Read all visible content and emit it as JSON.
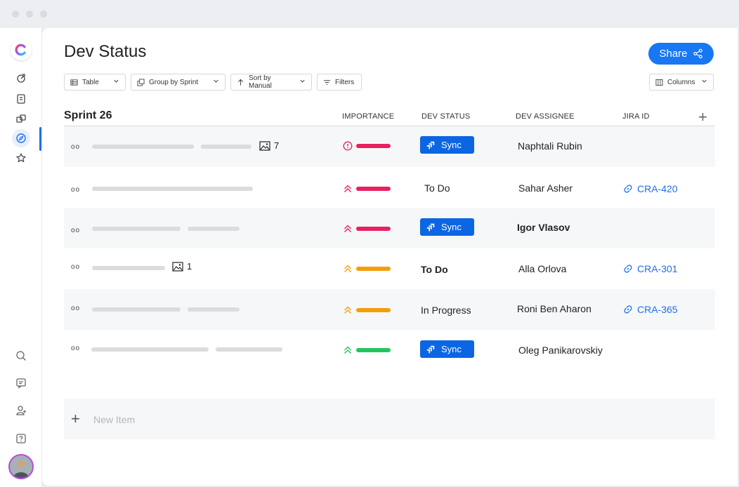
{
  "window": {
    "title_bar_dots": 3
  },
  "sidebar": {
    "logo": "clickup-logo",
    "items": [
      {
        "icon": "rocket-icon"
      },
      {
        "icon": "doc-icon"
      },
      {
        "icon": "layers-icon"
      },
      {
        "icon": "compass-icon",
        "active": true
      },
      {
        "icon": "star-icon"
      }
    ],
    "bottom": [
      {
        "icon": "search-icon"
      },
      {
        "icon": "chat-icon"
      },
      {
        "icon": "user-add-icon"
      },
      {
        "icon": "help-icon"
      },
      {
        "icon": "avatar"
      }
    ]
  },
  "header": {
    "title": "Dev Status",
    "share_label": "Share"
  },
  "toolbar": {
    "view_label": "Table",
    "group_label": "Group by Sprint",
    "sort_label": "Sort by Manual",
    "filters_label": "Filters",
    "columns_label": "Columns"
  },
  "table": {
    "group_name": "Sprint 26",
    "columns": {
      "importance": "IMPORTANCE",
      "dev_status": "DEV STATUS",
      "dev_assignee": "DEV ASSIGNEE",
      "jira_id": "JIRA ID"
    },
    "rows": [
      {
        "importance": "critical",
        "importance_color": "#e8205f",
        "status": "Sync",
        "assignee": "Naphtali Rubin",
        "jira": "",
        "images": "7"
      },
      {
        "importance": "high",
        "importance_color": "#e8205f",
        "status": "To Do",
        "assignee": "Sahar Asher",
        "jira": "CRA-420",
        "images": ""
      },
      {
        "importance": "high",
        "importance_color": "#e8205f",
        "status": "Sync",
        "assignee": "Igor Vlasov",
        "jira": "",
        "images": ""
      },
      {
        "importance": "medium",
        "importance_color": "#f59e0b",
        "status": "To Do",
        "assignee": "Alla Orlova",
        "jira": "CRA-301",
        "images": "1"
      },
      {
        "importance": "medium",
        "importance_color": "#f59e0b",
        "status": "In Progress",
        "assignee": "Roni Ben Aharon",
        "jira": "CRA-365",
        "images": ""
      },
      {
        "importance": "low",
        "importance_color": "#22c55e",
        "status": "Sync",
        "assignee": "Oleg Panikarovskiy",
        "jira": "",
        "images": ""
      }
    ],
    "new_item_label": "New Item"
  }
}
